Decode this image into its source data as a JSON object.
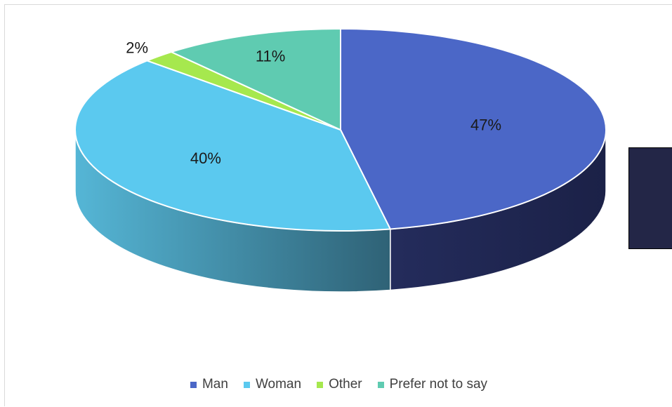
{
  "chart_data": {
    "type": "pie",
    "title": "",
    "categories": [
      "Man",
      "Woman",
      "Other",
      "Prefer not to say"
    ],
    "values": [
      47,
      40,
      2,
      11
    ],
    "labels": [
      "47%",
      "40%",
      "2%",
      "11%"
    ],
    "colors": [
      "#4b67c7",
      "#5bc9ef",
      "#a6e84e",
      "#5fcbb1"
    ],
    "side_colors": [
      "#1f2650",
      "#3d8fb0",
      "#78b33a",
      "#3f9988"
    ],
    "legend_position": "bottom",
    "three_d": true
  },
  "legend": {
    "items": [
      {
        "label": "Man",
        "color": "#4b67c7"
      },
      {
        "label": "Woman",
        "color": "#5bc9ef"
      },
      {
        "label": "Other",
        "color": "#a6e84e"
      },
      {
        "label": "Prefer not to say",
        "color": "#5fcbb1"
      }
    ]
  },
  "overlay": {
    "color": "#232647"
  }
}
